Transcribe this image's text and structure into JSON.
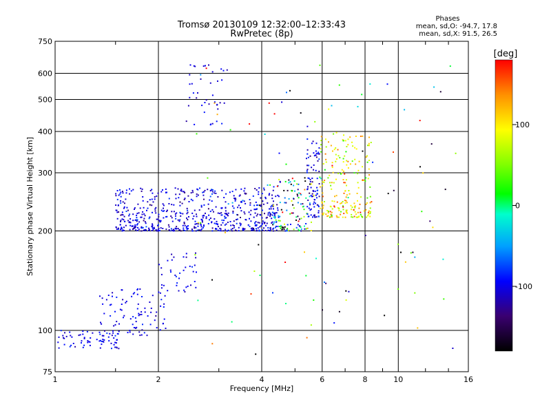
{
  "header": {
    "title_line1": "Tromsø 20130109 12:32:00–12:33:43",
    "title_line2": "RwPretec (8p)"
  },
  "stats": {
    "heading": "Phases",
    "line_o": "mean, sd,O: -94.7, 17.8",
    "line_x": "mean, sd,X:  91.5, 26.5"
  },
  "colorbar": {
    "label": "[deg]",
    "ticks": [
      {
        "value": 100,
        "label": "100"
      },
      {
        "value": 0,
        "label": "0"
      },
      {
        "value": -100,
        "label": "-100"
      }
    ],
    "range": [
      -180,
      180
    ]
  },
  "chart_data": {
    "type": "scatter",
    "title": "Tromsø 20130109 12:32:00–12:33:43",
    "subtitle": "RwPretec (8p)",
    "xlabel": "Frequency [MHz]",
    "ylabel": "Stationary phase Virtual Height [km]",
    "xscale": "log",
    "yscale": "log",
    "xlim": [
      1,
      16
    ],
    "ylim": [
      75,
      750
    ],
    "xticks": [
      {
        "value": 1,
        "label": "1"
      },
      {
        "value": 2,
        "label": "2"
      },
      {
        "value": 4,
        "label": "4"
      },
      {
        "value": 6,
        "label": "6"
      },
      {
        "value": 8,
        "label": "8"
      },
      {
        "value": 10,
        "label": "10"
      },
      {
        "value": 16,
        "label": "16"
      }
    ],
    "yticks": [
      {
        "value": 75,
        "label": "75"
      },
      {
        "value": 100,
        "label": "100"
      },
      {
        "value": 200,
        "label": "200"
      },
      {
        "value": 300,
        "label": "300"
      },
      {
        "value": 400,
        "label": "400"
      },
      {
        "value": 500,
        "label": "500"
      },
      {
        "value": 600,
        "label": "600"
      },
      {
        "value": 750,
        "label": "750"
      }
    ],
    "grid": true,
    "color_scale": "phase in degrees, rainbow (black -180 to red +180)",
    "clusters": [
      {
        "name": "low_o",
        "x_range": [
          1.02,
          1.55
        ],
        "y_range": [
          88,
          100
        ],
        "phase_mean": -100,
        "phase_sd": 10,
        "count": 70
      },
      {
        "name": "mid_o_low",
        "x_range": [
          1.35,
          2.1
        ],
        "y_range": [
          96,
          135
        ],
        "phase_mean": -100,
        "phase_sd": 10,
        "count": 90
      },
      {
        "name": "f_layer_o",
        "x_range": [
          1.5,
          4.5
        ],
        "y_range": [
          200,
          270
        ],
        "phase_mean": -105,
        "phase_sd": 15,
        "count": 620
      },
      {
        "name": "f_layer_trans",
        "x_range": [
          4.3,
          5.6
        ],
        "y_range": [
          200,
          290
        ],
        "phase_mean": -30,
        "phase_sd": 110,
        "count": 120
      },
      {
        "name": "f_cusp_o",
        "x_range": [
          5.4,
          5.9
        ],
        "y_range": [
          220,
          380
        ],
        "phase_mean": -100,
        "phase_sd": 20,
        "count": 90
      },
      {
        "name": "f_layer_x",
        "x_range": [
          5.9,
          8.4
        ],
        "y_range": [
          220,
          400
        ],
        "phase_mean": 95,
        "phase_sd": 35,
        "count": 220
      },
      {
        "name": "mid_o_high",
        "x_range": [
          2.0,
          2.6
        ],
        "y_range": [
          130,
          172
        ],
        "phase_mean": -100,
        "phase_sd": 10,
        "count": 40
      },
      {
        "name": "multihop_o",
        "x_range": [
          2.4,
          3.2
        ],
        "y_range": [
          415,
          660
        ],
        "phase_mean": -100,
        "phase_sd": 10,
        "count": 40
      },
      {
        "name": "scattered",
        "x_range": [
          2.5,
          15.0
        ],
        "y_range": [
          80,
          650
        ],
        "phase_mean": 0,
        "phase_sd": 120,
        "count": 110
      }
    ]
  }
}
